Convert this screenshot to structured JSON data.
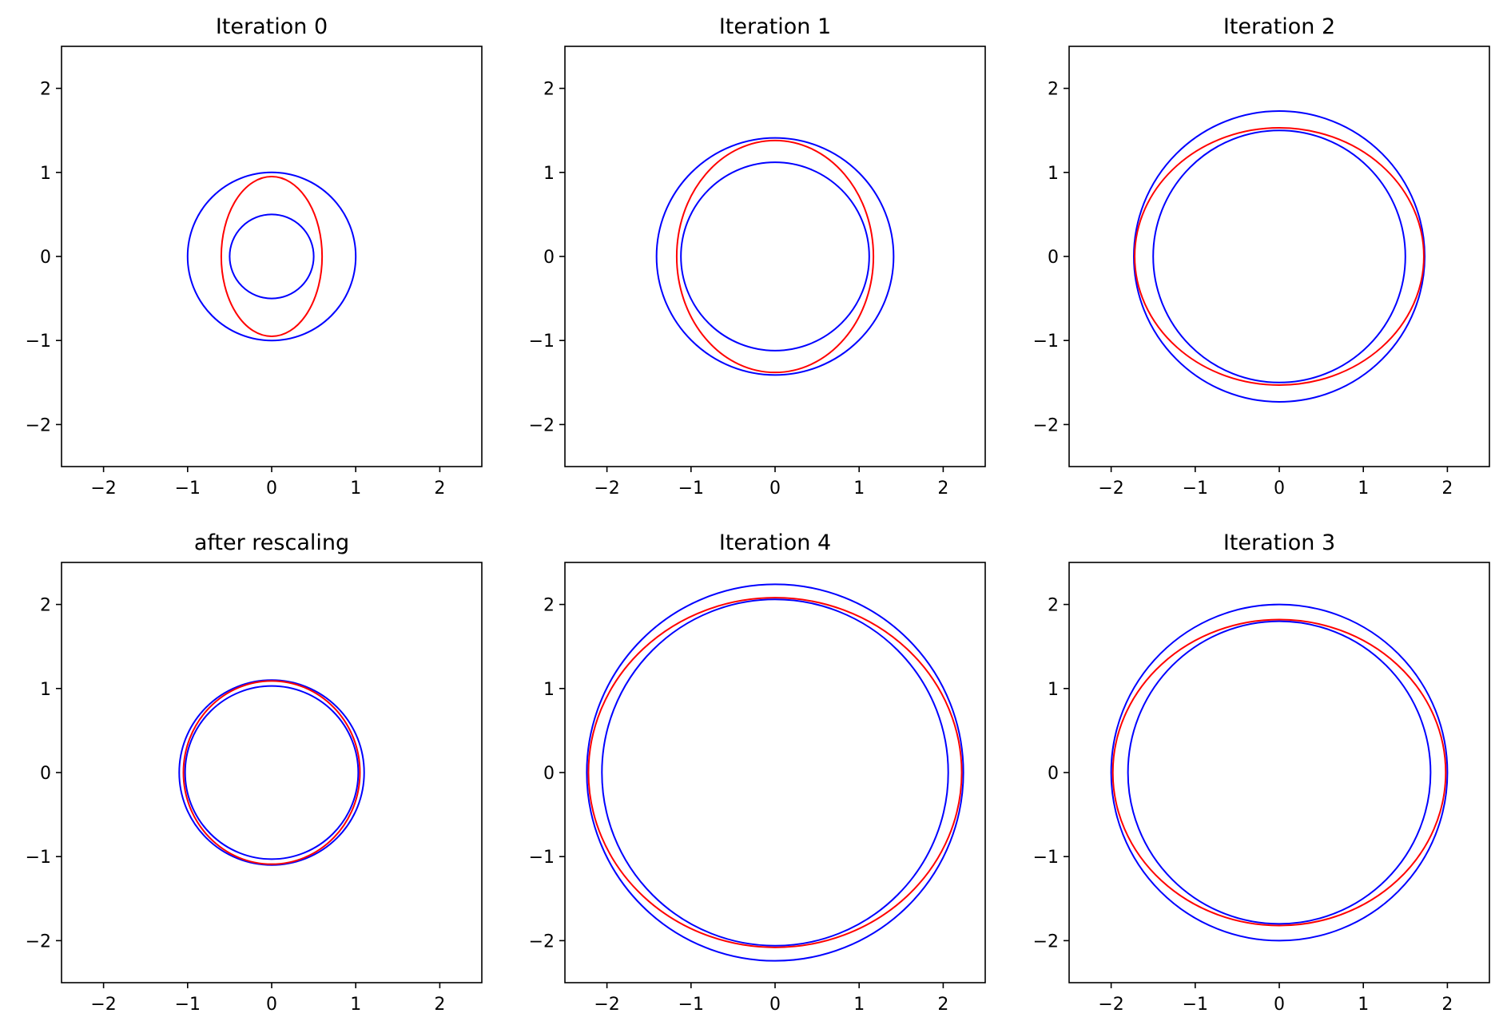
{
  "chart_data": [
    {
      "type": "line",
      "title": "Iteration 0",
      "xlim": [
        -2.5,
        2.5
      ],
      "ylim": [
        -2.5,
        2.5
      ],
      "xticks": [
        "−2",
        "−1",
        "0",
        "1",
        "2"
      ],
      "yticks": [
        "2",
        "1",
        "0",
        "−1",
        "−2"
      ],
      "grid": false,
      "curves": [
        {
          "shape": "ellipse",
          "color": "#0000ff",
          "cx": 0,
          "cy": 0,
          "rx": 1.0,
          "ry": 1.0
        },
        {
          "shape": "ellipse",
          "color": "#ff0000",
          "cx": 0,
          "cy": 0,
          "rx": 0.6,
          "ry": 0.95
        },
        {
          "shape": "ellipse",
          "color": "#0000ff",
          "cx": 0,
          "cy": 0,
          "rx": 0.5,
          "ry": 0.5
        }
      ]
    },
    {
      "type": "line",
      "title": "Iteration 1",
      "xlim": [
        -2.5,
        2.5
      ],
      "ylim": [
        -2.5,
        2.5
      ],
      "xticks": [
        "−2",
        "−1",
        "0",
        "1",
        "2"
      ],
      "yticks": [
        "2",
        "1",
        "0",
        "−1",
        "−2"
      ],
      "grid": false,
      "curves": [
        {
          "shape": "ellipse",
          "color": "#0000ff",
          "cx": 0,
          "cy": 0,
          "rx": 1.41,
          "ry": 1.41
        },
        {
          "shape": "ellipse",
          "color": "#ff0000",
          "cx": 0,
          "cy": 0,
          "rx": 1.17,
          "ry": 1.38
        },
        {
          "shape": "ellipse",
          "color": "#0000ff",
          "cx": 0,
          "cy": 0,
          "rx": 1.12,
          "ry": 1.12
        }
      ]
    },
    {
      "type": "line",
      "title": "Iteration 2",
      "xlim": [
        -2.5,
        2.5
      ],
      "ylim": [
        -2.5,
        2.5
      ],
      "xticks": [
        "−2",
        "−1",
        "0",
        "1",
        "2"
      ],
      "yticks": [
        "2",
        "1",
        "0",
        "−1",
        "−2"
      ],
      "grid": false,
      "curves": [
        {
          "shape": "ellipse",
          "color": "#0000ff",
          "cx": 0,
          "cy": 0,
          "rx": 1.73,
          "ry": 1.73
        },
        {
          "shape": "ellipse",
          "color": "#ff0000",
          "cx": 0,
          "cy": 0,
          "rx": 1.72,
          "ry": 1.53
        },
        {
          "shape": "ellipse",
          "color": "#0000ff",
          "cx": 0,
          "cy": 0,
          "rx": 1.5,
          "ry": 1.5
        }
      ]
    },
    {
      "type": "line",
      "title": "after rescaling",
      "xlim": [
        -2.5,
        2.5
      ],
      "ylim": [
        -2.5,
        2.5
      ],
      "xticks": [
        "−2",
        "−1",
        "0",
        "1",
        "2"
      ],
      "yticks": [
        "2",
        "1",
        "0",
        "−1",
        "−2"
      ],
      "grid": false,
      "curves": [
        {
          "shape": "ellipse",
          "color": "#0000ff",
          "cx": 0,
          "cy": 0,
          "rx": 1.1,
          "ry": 1.1
        },
        {
          "shape": "ellipse",
          "color": "#ff0000",
          "cx": 0,
          "cy": 0,
          "rx": 1.05,
          "ry": 1.09
        },
        {
          "shape": "ellipse",
          "color": "#0000ff",
          "cx": 0,
          "cy": 0,
          "rx": 1.03,
          "ry": 1.03
        }
      ]
    },
    {
      "type": "line",
      "title": "Iteration 4",
      "xlim": [
        -2.5,
        2.5
      ],
      "ylim": [
        -2.5,
        2.5
      ],
      "xticks": [
        "−2",
        "−1",
        "0",
        "1",
        "2"
      ],
      "yticks": [
        "2",
        "1",
        "0",
        "−1",
        "−2"
      ],
      "grid": false,
      "curves": [
        {
          "shape": "ellipse",
          "color": "#0000ff",
          "cx": 0,
          "cy": 0,
          "rx": 2.24,
          "ry": 2.24
        },
        {
          "shape": "ellipse",
          "color": "#ff0000",
          "cx": 0,
          "cy": 0,
          "rx": 2.22,
          "ry": 2.08
        },
        {
          "shape": "ellipse",
          "color": "#0000ff",
          "cx": 0,
          "cy": 0,
          "rx": 2.06,
          "ry": 2.06
        }
      ]
    },
    {
      "type": "line",
      "title": "Iteration 3",
      "xlim": [
        -2.5,
        2.5
      ],
      "ylim": [
        -2.5,
        2.5
      ],
      "xticks": [
        "−2",
        "−1",
        "0",
        "1",
        "2"
      ],
      "yticks": [
        "2",
        "1",
        "0",
        "−1",
        "−2"
      ],
      "grid": false,
      "curves": [
        {
          "shape": "ellipse",
          "color": "#0000ff",
          "cx": 0,
          "cy": 0,
          "rx": 2.0,
          "ry": 2.0
        },
        {
          "shape": "ellipse",
          "color": "#ff0000",
          "cx": 0,
          "cy": 0,
          "rx": 1.98,
          "ry": 1.82
        },
        {
          "shape": "ellipse",
          "color": "#0000ff",
          "cx": 0,
          "cy": 0,
          "rx": 1.8,
          "ry": 1.8
        }
      ]
    }
  ]
}
